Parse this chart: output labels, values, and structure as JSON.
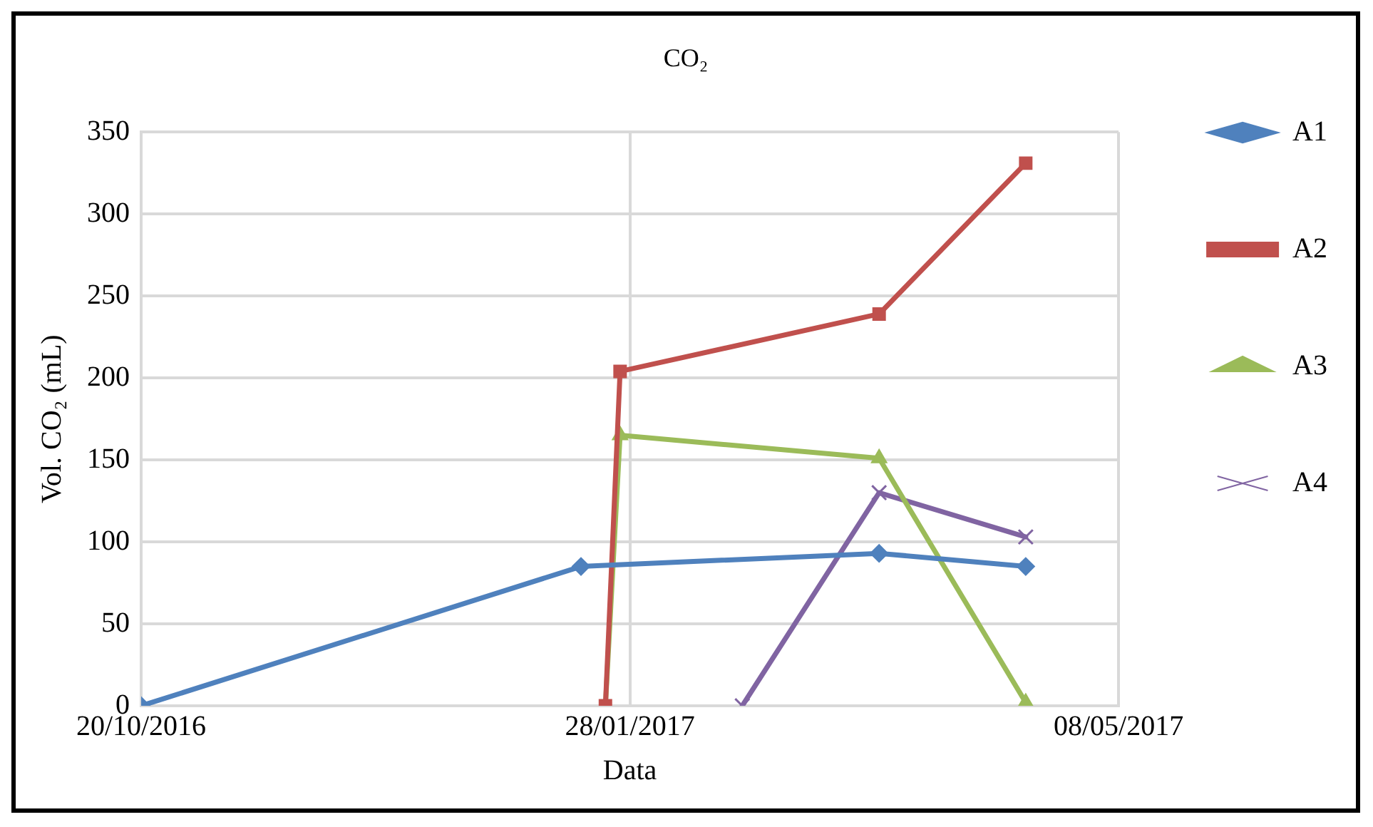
{
  "chart_data": {
    "type": "line",
    "title": "CO₂",
    "xlabel": "Data",
    "ylabel": "Vol. CO₂ (mL)",
    "xlim": [
      "2016-10-20",
      "2017-05-08"
    ],
    "xticks": [
      {
        "value": "2016-10-20",
        "label": "20/10/2016"
      },
      {
        "value": "2017-01-28",
        "label": "28/01/2017"
      },
      {
        "value": "2017-05-08",
        "label": "08/05/2017"
      }
    ],
    "ylim": [
      0,
      350
    ],
    "yticks": [
      0,
      50,
      100,
      150,
      200,
      250,
      300,
      350
    ],
    "grid": true,
    "legend": "right",
    "series": [
      {
        "name": "A1",
        "color": "#4f81bd",
        "marker": "diamond",
        "x": [
          "2016-10-20",
          "2017-01-18",
          "2017-03-20",
          "2017-04-19"
        ],
        "values": [
          0,
          85,
          93,
          85
        ]
      },
      {
        "name": "A2",
        "color": "#c0504d",
        "marker": "square",
        "x": [
          "2017-01-23",
          "2017-01-26",
          "2017-03-20",
          "2017-04-19"
        ],
        "values": [
          0,
          204,
          239,
          331
        ]
      },
      {
        "name": "A3",
        "color": "#9bbb59",
        "marker": "triangle",
        "x": [
          "2017-01-23",
          "2017-01-26",
          "2017-03-20",
          "2017-04-19"
        ],
        "values": [
          0,
          165,
          151,
          2
        ]
      },
      {
        "name": "A4",
        "color": "#8064a2",
        "marker": "cross",
        "x": [
          "2017-02-20",
          "2017-03-20",
          "2017-04-19"
        ],
        "values": [
          0,
          130,
          103
        ]
      }
    ]
  }
}
